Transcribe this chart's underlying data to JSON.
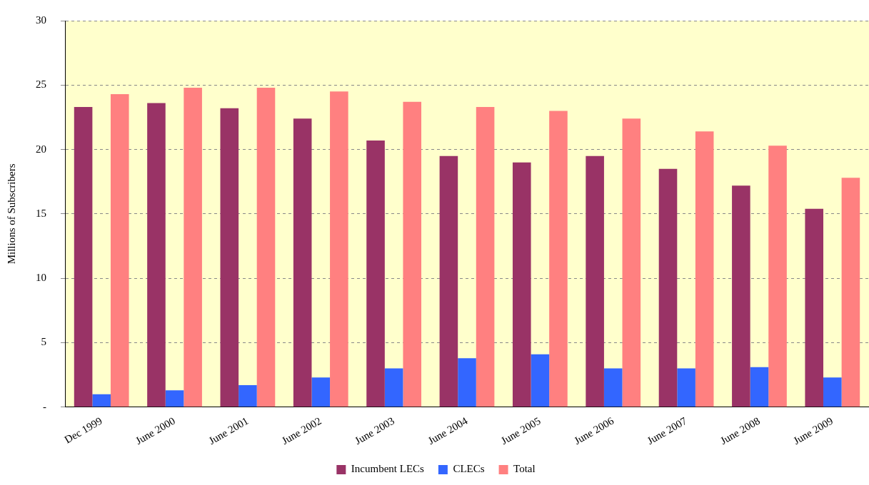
{
  "chart_data": {
    "type": "bar",
    "ylabel": "Millions of Subscribers",
    "categories": [
      "Dec 1999",
      "June 2000",
      "June 2001",
      "June 2002",
      "June 2003",
      "June 2004",
      "June 2005",
      "June 2006",
      "June 2007",
      "June 2008",
      "June 2009"
    ],
    "series": [
      {
        "name": "Incumbent LECs",
        "color": "#993366",
        "values": [
          23.3,
          23.6,
          23.2,
          22.4,
          20.7,
          19.5,
          19.0,
          19.5,
          18.5,
          17.2,
          15.4
        ]
      },
      {
        "name": "CLECs",
        "color": "#3366ff",
        "values": [
          1.0,
          1.3,
          1.7,
          2.3,
          3.0,
          3.8,
          4.1,
          3.0,
          3.0,
          3.1,
          2.3
        ]
      },
      {
        "name": "Total",
        "color": "#ff8080",
        "values": [
          24.3,
          24.8,
          24.8,
          24.5,
          23.7,
          23.3,
          23.0,
          22.4,
          21.4,
          20.3,
          17.8
        ]
      }
    ],
    "ylim": [
      0,
      30
    ],
    "yticks": [
      {
        "value": 0,
        "label": "-"
      },
      5,
      10,
      15,
      20,
      25,
      30
    ],
    "grid": "y",
    "legend": "bottom"
  }
}
